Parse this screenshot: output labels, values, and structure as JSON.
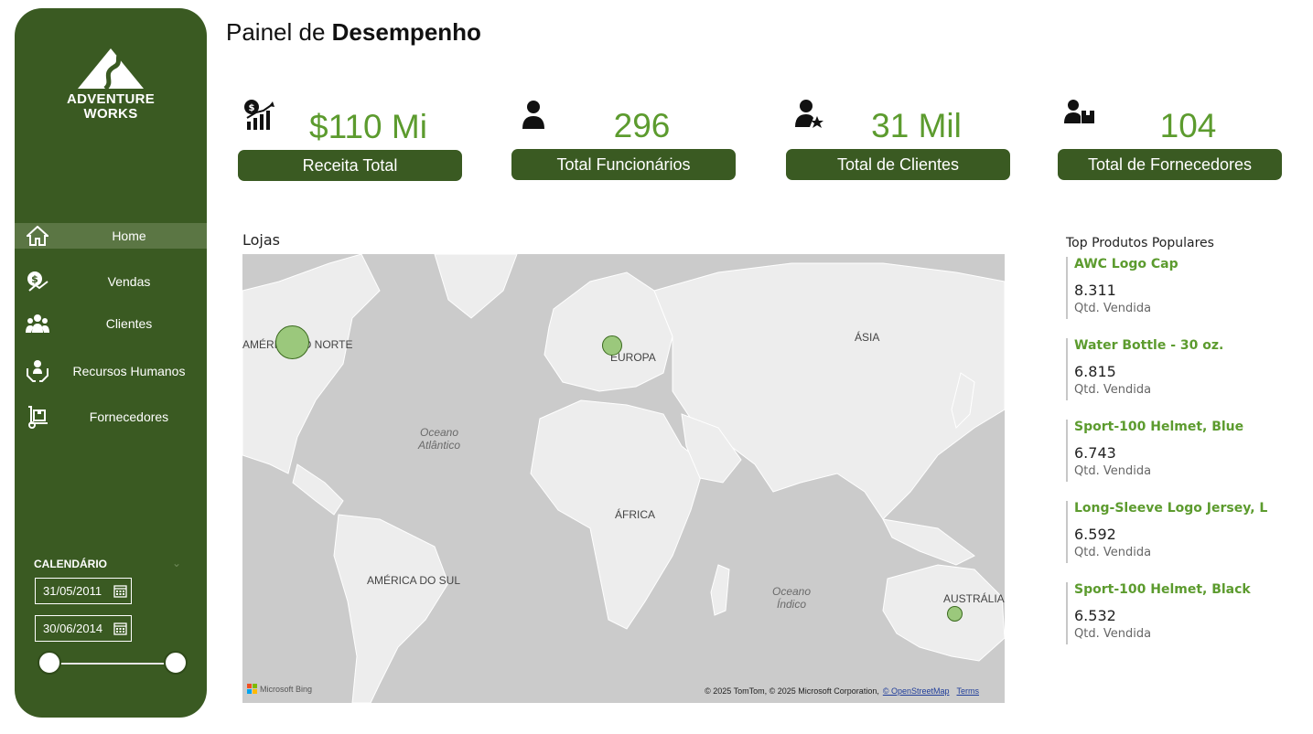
{
  "sidebar": {
    "logo_line1": "ADVENTURE",
    "logo_line2": "WORKS",
    "items": [
      {
        "label": "Home",
        "icon": "home-icon",
        "active": true
      },
      {
        "label": "Vendas",
        "icon": "sales-icon"
      },
      {
        "label": "Clientes",
        "icon": "customers-icon"
      },
      {
        "label": "Recursos Humanos",
        "icon": "human-resources-icon"
      },
      {
        "label": "Fornecedores",
        "icon": "suppliers-icon"
      }
    ],
    "calendar": {
      "title": "CALENDÁRIO",
      "start_date": "31/05/2011",
      "end_date": "30/06/2014",
      "range_start_fraction": 0,
      "range_end_fraction": 1
    }
  },
  "header": {
    "title_regular": "Painel de",
    "title_bold": "Desempenho"
  },
  "kpis": [
    {
      "value": "$110 Mi",
      "label": "Receita Total",
      "icon": "revenue-icon"
    },
    {
      "value": "296",
      "label": "Total Funcionários",
      "icon": "employee-icon"
    },
    {
      "value": "31 Mil",
      "label": "Total de Clientes",
      "icon": "customer-star-icon"
    },
    {
      "value": "104",
      "label": "Total de Fornecedores",
      "icon": "supplier-box-icon"
    }
  ],
  "map": {
    "title": "Lojas",
    "labels": {
      "north_america": "AMÉRICA DO NORTE",
      "europe": "EUROPA",
      "asia": "ÁSIA",
      "africa": "ÁFRICA",
      "south_america": "AMÉRICA DO SUL",
      "australia": "AUSTRÁLIA",
      "atlantic_line1": "Oceano",
      "atlantic_line2": "Atlântico",
      "indian_line1": "Oceano",
      "indian_line2": "Índico"
    },
    "attribution": "© 2025 TomTom, © 2025 Microsoft Corporation,",
    "osm_link": "© OpenStreetMap",
    "terms_link": "Terms",
    "provider": "Microsoft Bing",
    "bubble_color": "#9bc87c"
  },
  "top_products": {
    "title": "Top Produtos Populares",
    "sublabel": "Qtd. Vendida",
    "items": [
      {
        "name": "AWC Logo Cap",
        "qty": "8.311"
      },
      {
        "name": "Water Bottle - 30 oz.",
        "qty": "6.815"
      },
      {
        "name": "Sport-100 Helmet, Blue",
        "qty": "6.743"
      },
      {
        "name": "Long-Sleeve Logo Jersey, L",
        "qty": "6.592"
      },
      {
        "name": "Sport-100 Helmet, Black",
        "qty": "6.532"
      }
    ]
  },
  "colors": {
    "brand_green": "#3a5a22",
    "accent_green": "#5c9b2e",
    "active_item": "#5b7644"
  }
}
